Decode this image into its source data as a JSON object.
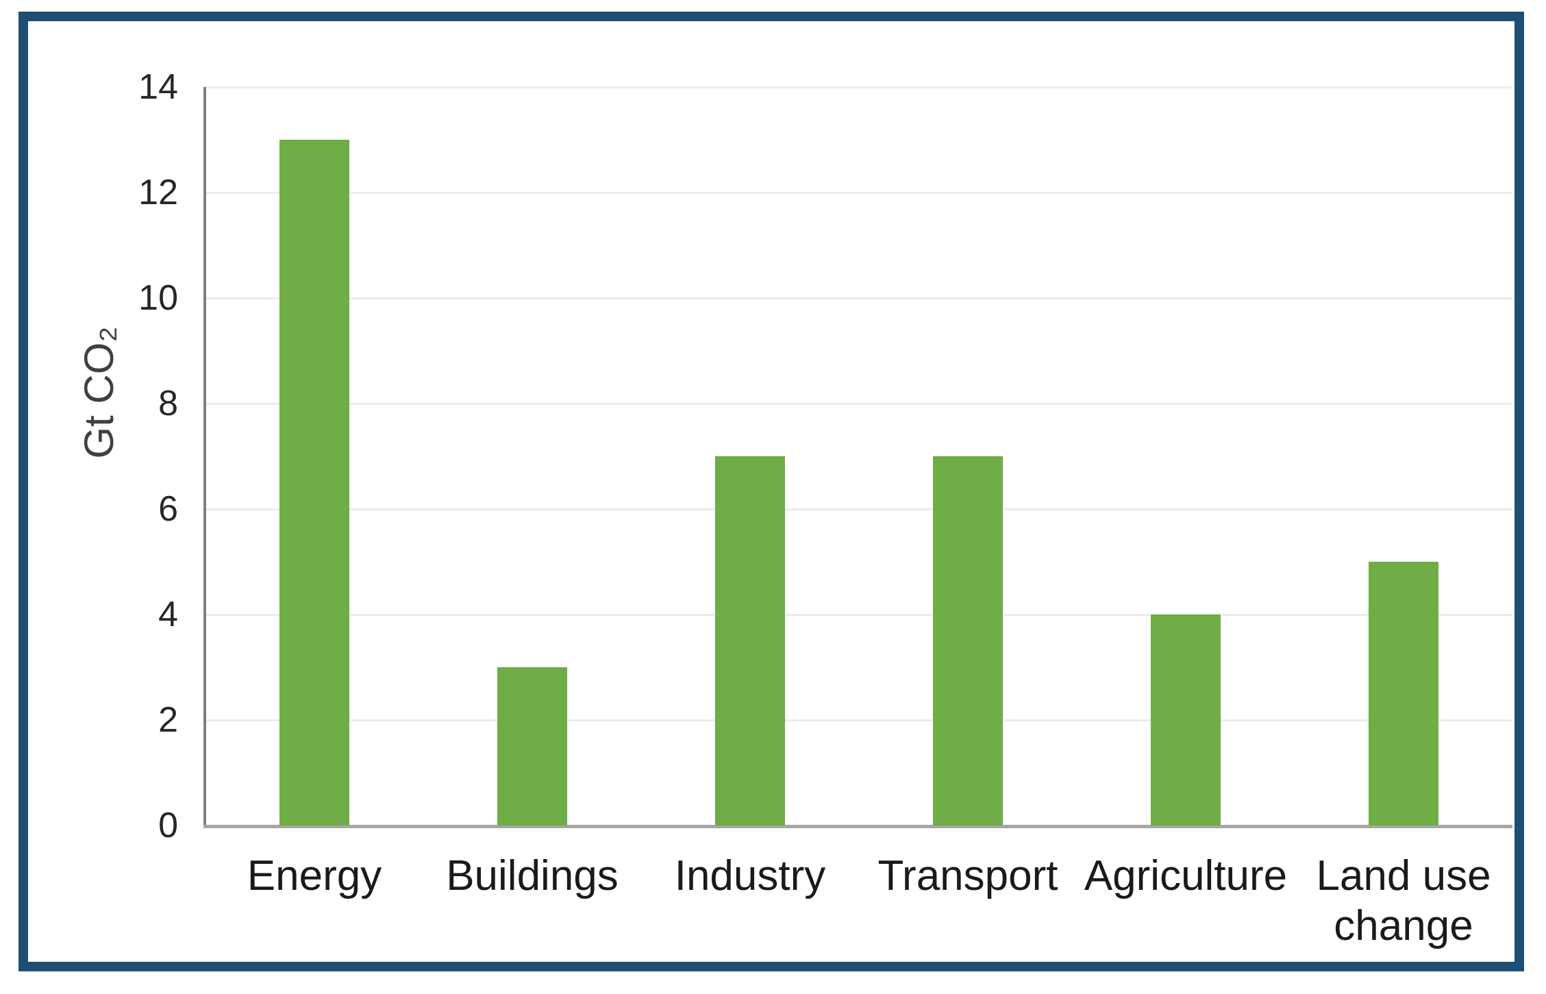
{
  "chart_data": {
    "type": "bar",
    "categories": [
      "Energy",
      "Buildings",
      "Industry",
      "Transport",
      "Agriculture",
      "Land use change"
    ],
    "values": [
      13,
      3,
      7,
      7,
      4,
      5
    ],
    "title": "",
    "xlabel": "",
    "ylabel": "Gt CO₂",
    "ylim": [
      0,
      14
    ],
    "yticks": [
      0,
      2,
      4,
      6,
      8,
      10,
      12,
      14
    ],
    "grid": "horizontal",
    "legend": "none",
    "bar_color": "#6fad47",
    "frame_border_color": "#1f4e74",
    "gridline_color": "#ececec",
    "axis_line_color": "#7f7f7f"
  }
}
